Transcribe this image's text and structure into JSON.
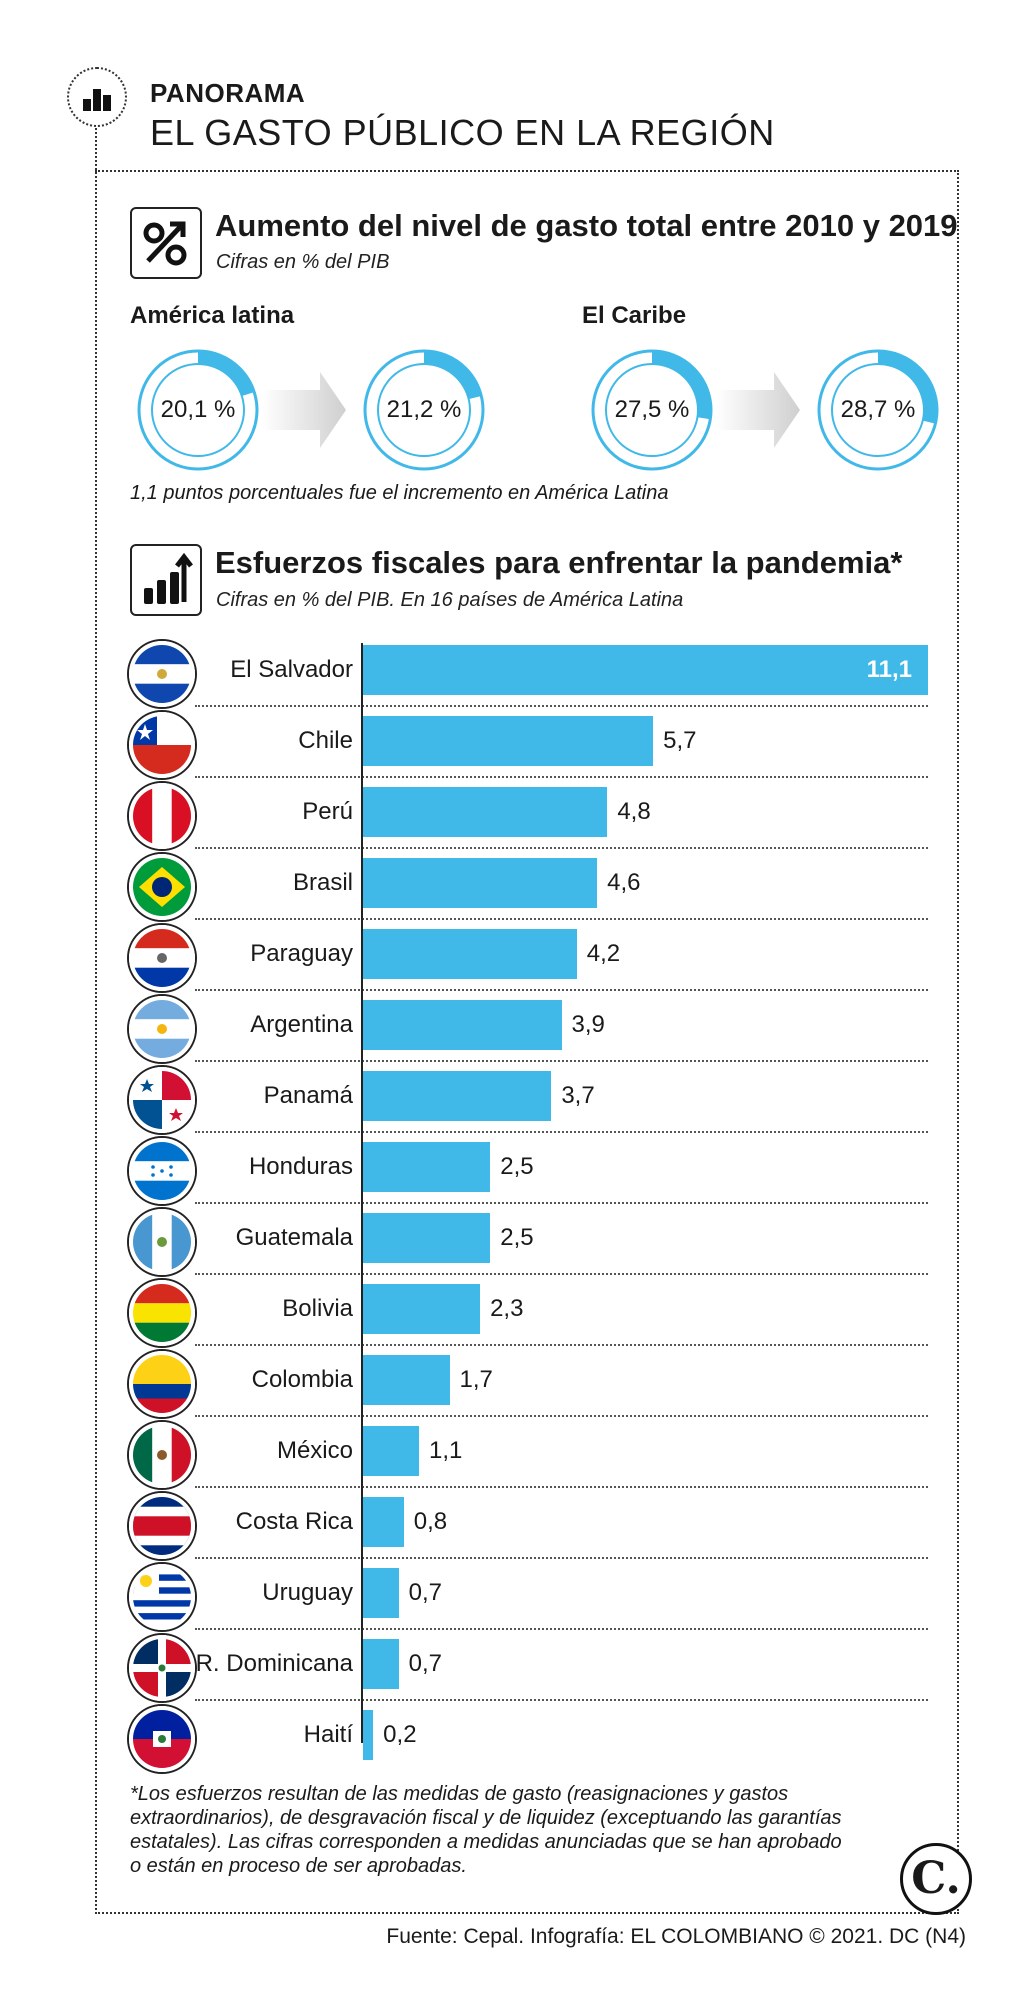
{
  "header": {
    "kicker": "PANORAMA",
    "title": "EL GASTO PÚBLICO EN LA REGIÓN"
  },
  "section1": {
    "title": "Aumento del nivel de gasto total entre 2010 y 2019",
    "subtitle": "Cifras en % del PIB",
    "groups": [
      {
        "region": "América latina",
        "from_label": "20,1 %",
        "to_label": "21,2 %",
        "from": 20.1,
        "to": 21.2
      },
      {
        "region": "El Caribe",
        "from_label": "27,5 %",
        "to_label": "28,7 %",
        "from": 27.5,
        "to": 28.7
      }
    ],
    "note": "1,1 puntos porcentuales fue el incremento en América Latina"
  },
  "section2": {
    "title": "Esfuerzos fiscales para enfrentar la pandemia*",
    "subtitle": "Cifras en % del PIB. En 16 países de América Latina"
  },
  "chart_data": {
    "type": "bar",
    "orientation": "horizontal",
    "title": "Esfuerzos fiscales para enfrentar la pandemia*",
    "categories": [
      "El Salvador",
      "Chile",
      "Perú",
      "Brasil",
      "Paraguay",
      "Argentina",
      "Panamá",
      "Honduras",
      "Guatemala",
      "Bolivia",
      "Colombia",
      "México",
      "Costa Rica",
      "Uruguay",
      "R. Dominicana",
      "Haití"
    ],
    "values": [
      11.1,
      5.7,
      4.8,
      4.6,
      4.2,
      3.9,
      3.7,
      2.5,
      2.5,
      2.3,
      1.7,
      1.1,
      0.8,
      0.7,
      0.7,
      0.2
    ],
    "value_labels": [
      "11,1",
      "5,7",
      "4,8",
      "4,6",
      "4,2",
      "3,9",
      "3,7",
      "2,5",
      "2,5",
      "2,3",
      "1,7",
      "1,1",
      "0,8",
      "0,7",
      "0,7",
      "0,2"
    ],
    "xlim": [
      0,
      11.1
    ],
    "grid": false,
    "bar_color": "#40b8e8"
  },
  "footnote": "*Los esfuerzos resultan de las medidas de gasto (reasignaciones y gastos extraordinarios), de desgravación fiscal y de liquidez (exceptuando las garantías estatales). Las cifras corresponden a medidas anunciadas que se han aprobado o están en proceso de ser aprobadas.",
  "source": "Fuente: Cepal. Infografía: EL COLOMBIANO © 2021. DC (N4)",
  "brand": "C.",
  "colors": {
    "accent": "#40b8e8",
    "ring": "#40b8e8",
    "arrow_gray": "#d9d9d9"
  },
  "icons": [
    "bar-chart-icon",
    "percent-up-icon",
    "chart-growth-icon"
  ]
}
